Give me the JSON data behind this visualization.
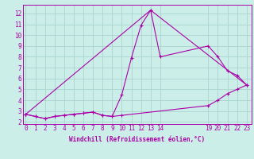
{
  "xlabel": "Windchill (Refroidissement éolien,°C)",
  "bg_color": "#cceee8",
  "grid_color": "#aad4ce",
  "line_color": "#aa00aa",
  "series1": [
    [
      0,
      2.7
    ],
    [
      1,
      2.5
    ],
    [
      2,
      2.3
    ],
    [
      3,
      2.5
    ],
    [
      4,
      2.6
    ],
    [
      5,
      2.7
    ],
    [
      6,
      2.8
    ],
    [
      7,
      2.9
    ],
    [
      8,
      2.6
    ],
    [
      9,
      2.5
    ],
    [
      10,
      4.5
    ],
    [
      11,
      7.9
    ],
    [
      12,
      10.9
    ],
    [
      13,
      12.3
    ],
    [
      14,
      8.0
    ],
    [
      19,
      9.0
    ],
    [
      20,
      8.0
    ],
    [
      21,
      6.7
    ],
    [
      22,
      6.3
    ],
    [
      23,
      5.4
    ]
  ],
  "series2": [
    [
      0,
      2.7
    ],
    [
      1,
      2.5
    ],
    [
      2,
      2.3
    ],
    [
      3,
      2.5
    ],
    [
      4,
      2.6
    ],
    [
      5,
      2.7
    ],
    [
      6,
      2.8
    ],
    [
      7,
      2.9
    ],
    [
      8,
      2.6
    ],
    [
      9,
      2.5
    ],
    [
      10,
      2.6
    ],
    [
      19,
      3.5
    ],
    [
      20,
      4.0
    ],
    [
      21,
      4.6
    ],
    [
      22,
      5.0
    ],
    [
      23,
      5.4
    ]
  ],
  "series3": [
    [
      0,
      2.7
    ],
    [
      13,
      12.3
    ],
    [
      23,
      5.4
    ]
  ],
  "xlim": [
    -0.3,
    23.5
  ],
  "ylim": [
    1.8,
    12.8
  ],
  "xticks": [
    0,
    1,
    2,
    3,
    4,
    5,
    6,
    7,
    8,
    9,
    10,
    11,
    12,
    13,
    14,
    19,
    20,
    21,
    22,
    23
  ],
  "yticks": [
    2,
    3,
    4,
    5,
    6,
    7,
    8,
    9,
    10,
    11,
    12
  ],
  "xlabel_fontsize": 5.5,
  "tick_fontsize": 5.5
}
